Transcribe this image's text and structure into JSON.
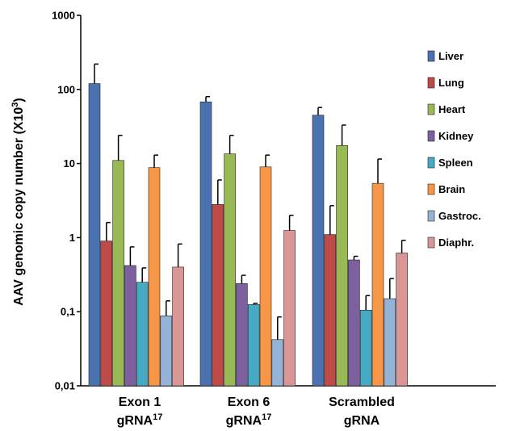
{
  "chart_data": {
    "type": "bar",
    "scale": "log",
    "ylim": [
      0.01,
      1000
    ],
    "ylabel": "AAV genomic copy number (X10",
    "ylabel_sup": "3",
    "ylabel_end": ")",
    "yticks": [
      {
        "value": 1000,
        "label": "1000"
      },
      {
        "value": 100,
        "label": "100"
      },
      {
        "value": 10,
        "label": "10"
      },
      {
        "value": 1,
        "label": "1"
      },
      {
        "value": 0.1,
        "label": "0,1"
      },
      {
        "value": 0.01,
        "label": "0,01"
      }
    ],
    "categories": [
      {
        "line1": "Exon 1",
        "line2": "gRNA",
        "sup": "17"
      },
      {
        "line1": "Exon 6",
        "line2": "gRNA",
        "sup": "17"
      },
      {
        "line1": "Scrambled",
        "line2": "gRNA",
        "sup": ""
      }
    ],
    "series": [
      {
        "name": "Liver",
        "color": "#4a72b0",
        "values": [
          120,
          68,
          45
        ],
        "errors": [
          220,
          80,
          57
        ]
      },
      {
        "name": "Lung",
        "color": "#be4b48",
        "values": [
          0.9,
          2.8,
          1.1
        ],
        "errors": [
          1.6,
          6.0,
          2.7
        ]
      },
      {
        "name": "Heart",
        "color": "#98b954",
        "values": [
          11,
          13.5,
          17.5
        ],
        "errors": [
          24,
          24,
          33
        ]
      },
      {
        "name": "Kidney",
        "color": "#7d60a0",
        "values": [
          0.42,
          0.24,
          0.5
        ],
        "errors": [
          0.75,
          0.31,
          0.56
        ]
      },
      {
        "name": "Spleen",
        "color": "#46aac5",
        "values": [
          0.25,
          0.125,
          0.105
        ],
        "errors": [
          0.39,
          0.13,
          0.165
        ]
      },
      {
        "name": "Brain",
        "color": "#f79646",
        "values": [
          8.8,
          9.0,
          5.4
        ],
        "errors": [
          13,
          13,
          11.5
        ]
      },
      {
        "name": "Gastroc.",
        "color": "#95b3d7",
        "values": [
          0.088,
          0.042,
          0.15
        ],
        "errors": [
          0.14,
          0.085,
          0.28
        ]
      },
      {
        "name": "Diaphr.",
        "color": "#d99694",
        "values": [
          0.4,
          1.25,
          0.62
        ],
        "errors": [
          0.82,
          2.0,
          0.92
        ]
      }
    ],
    "legend_position": "right",
    "grid": false
  }
}
